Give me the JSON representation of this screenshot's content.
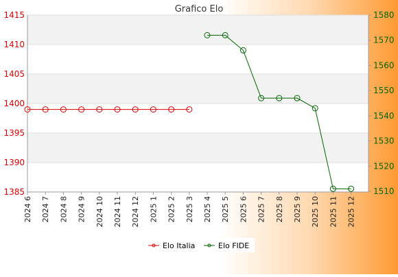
{
  "chart_data": {
    "type": "line",
    "title": "Grafico Elo",
    "categories": [
      "2024 6",
      "2024 7",
      "2024 8",
      "2024 9",
      "2024 10",
      "2024 11",
      "2024 12",
      "2025 1",
      "2025 2",
      "2025 3",
      "2025 4",
      "2025 5",
      "2025 6",
      "2025 7",
      "2025 8",
      "2025 9",
      "2025 10",
      "2025 11",
      "2025 12"
    ],
    "y_left": {
      "ylim": [
        1385,
        1415
      ],
      "ticks": [
        1385,
        1390,
        1395,
        1400,
        1405,
        1410,
        1415
      ],
      "color": "#dd0000"
    },
    "y_right": {
      "ylim": [
        1508,
        1580
      ],
      "ticks": [
        1510,
        1520,
        1530,
        1540,
        1550,
        1560,
        1570,
        1580
      ],
      "color": "#006600"
    },
    "series": [
      {
        "name": "Elo Italia",
        "axis": "left",
        "color": "#dd0000",
        "values": [
          1399,
          1399,
          1399,
          1399,
          1399,
          1399,
          1399,
          1399,
          1399,
          1399,
          null,
          null,
          null,
          null,
          null,
          null,
          null,
          null,
          null
        ]
      },
      {
        "name": "Elo FIDE",
        "axis": "right",
        "color": "#006600",
        "values": [
          null,
          null,
          null,
          null,
          null,
          null,
          null,
          null,
          null,
          null,
          1572,
          1572,
          1566,
          1547,
          1547,
          1547,
          1543,
          1511,
          1511
        ]
      }
    ],
    "grid": true,
    "legend": "bottom-center"
  }
}
